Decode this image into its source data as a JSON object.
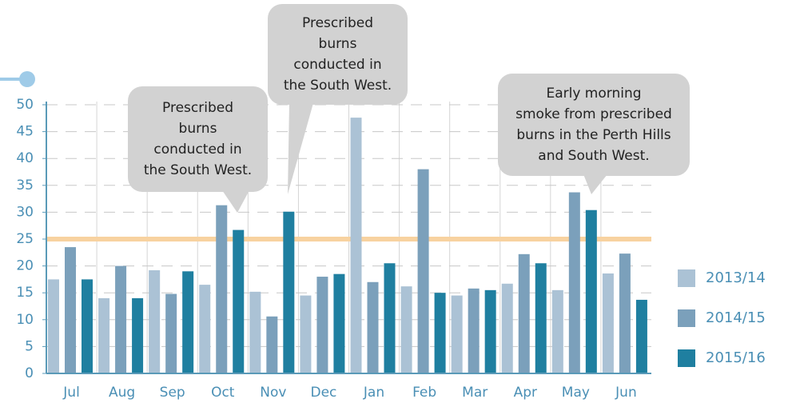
{
  "chart_data": {
    "type": "bar",
    "categories": [
      "Jul",
      "Aug",
      "Sep",
      "Oct",
      "Nov",
      "Dec",
      "Jan",
      "Feb",
      "Mar",
      "Apr",
      "May",
      "Jun"
    ],
    "series": [
      {
        "name": "2013/14",
        "color": "#abc2d5",
        "values": [
          17.5,
          14,
          19.2,
          16.5,
          15.2,
          14.5,
          47.6,
          16.2,
          14.5,
          16.7,
          15.5,
          18.6
        ]
      },
      {
        "name": "2014/15",
        "color": "#7ba0bb",
        "values": [
          23.5,
          20,
          14.8,
          31.3,
          10.6,
          18,
          17,
          38,
          15.8,
          22.2,
          33.7,
          22.3
        ]
      },
      {
        "name": "2015/16",
        "color": "#1f7fa0",
        "values": [
          17.5,
          14,
          19,
          26.7,
          30.1,
          18.5,
          20.5,
          15,
          15.5,
          20.5,
          30.4,
          13.7
        ]
      }
    ],
    "ylim": [
      0,
      50
    ],
    "yticks": [
      0,
      5,
      10,
      15,
      20,
      25,
      30,
      35,
      40,
      45,
      50
    ],
    "threshold": 25,
    "threshold_color": "#f8d2a0",
    "grid": true,
    "legend": "right",
    "annotations": [
      {
        "lines": [
          "Prescribed",
          "burns",
          "conducted in",
          "the South West."
        ]
      },
      {
        "lines": [
          "Prescribed",
          "burns",
          "conducted in",
          "the South West."
        ]
      },
      {
        "lines": [
          "Early morning",
          "smoke from prescribed",
          "burns in the Perth Hills",
          "and South West."
        ]
      }
    ]
  }
}
